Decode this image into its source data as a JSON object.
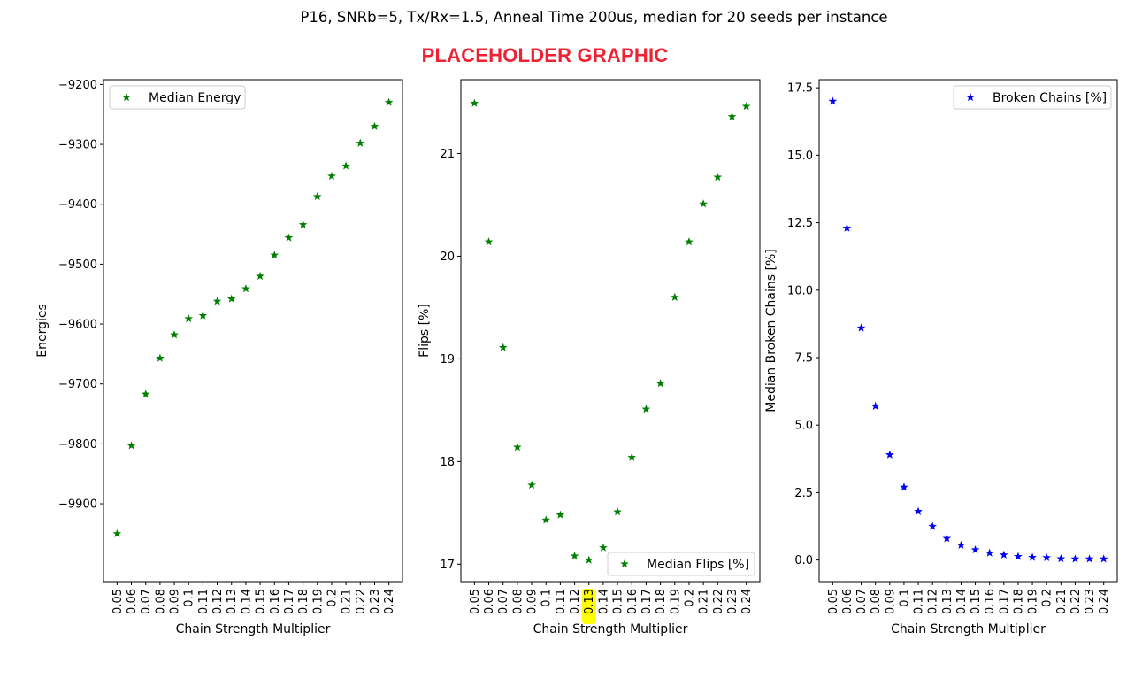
{
  "suptitle": "P16, SNRb=5, Tx/Rx=1.5, Anneal Time 200us, median for 20 seeds per instance",
  "placeholder": "PLACEHOLDER GRAPHIC",
  "highlight_color": "#ffff00",
  "chart_data": [
    {
      "type": "scatter",
      "title": "",
      "xlabel": "Chain Strength Multiplier",
      "ylabel": "Energies",
      "categories": [
        "0.05",
        "0.06",
        "0.07",
        "0.08",
        "0.09",
        "0.1",
        "0.11",
        "0.12",
        "0.13",
        "0.14",
        "0.15",
        "0.16",
        "0.17",
        "0.18",
        "0.19",
        "0.2",
        "0.21",
        "0.22",
        "0.23",
        "0.24"
      ],
      "yticks": [
        -9900,
        -9800,
        -9700,
        -9600,
        -9500,
        -9400,
        -9300,
        -9200
      ],
      "ylim": [
        -10030,
        -9192
      ],
      "legend_position": "upper left",
      "marker": "star",
      "series": [
        {
          "name": "Median Energy",
          "color": "#008000",
          "values": [
            -9950,
            -9803,
            -9717,
            -9657,
            -9618,
            -9591,
            -9586,
            -9562,
            -9558,
            -9541,
            -9520,
            -9485,
            -9456,
            -9434,
            -9387,
            -9353,
            -9336,
            -9298,
            -9270,
            -9230
          ]
        }
      ]
    },
    {
      "type": "scatter",
      "title": "",
      "xlabel": "Chain Strength Multiplier",
      "ylabel": "Flips [%]",
      "categories": [
        "0.05",
        "0.06",
        "0.07",
        "0.08",
        "0.09",
        "0.1",
        "0.11",
        "0.12",
        "0.13",
        "0.14",
        "0.15",
        "0.16",
        "0.17",
        "0.18",
        "0.19",
        "0.2",
        "0.21",
        "0.22",
        "0.23",
        "0.24"
      ],
      "highlighted_category": "0.13",
      "yticks": [
        17,
        18,
        19,
        20,
        21
      ],
      "ylim": [
        16.83,
        21.72
      ],
      "legend_position": "lower right",
      "marker": "star",
      "series": [
        {
          "name": "Median Flips [%]",
          "color": "#008000",
          "values": [
            21.49,
            20.14,
            19.11,
            18.14,
            17.77,
            17.43,
            17.48,
            17.08,
            17.04,
            17.16,
            17.51,
            18.04,
            18.51,
            18.76,
            19.6,
            20.14,
            20.51,
            20.77,
            21.36,
            21.46
          ]
        }
      ]
    },
    {
      "type": "scatter",
      "title": "",
      "xlabel": "Chain Strength Multiplier",
      "ylabel": "Median Broken Chains [%]",
      "categories": [
        "0.05",
        "0.06",
        "0.07",
        "0.08",
        "0.09",
        "0.1",
        "0.11",
        "0.12",
        "0.13",
        "0.14",
        "0.15",
        "0.16",
        "0.17",
        "0.18",
        "0.19",
        "0.2",
        "0.21",
        "0.22",
        "0.23",
        "0.24"
      ],
      "ytick_labels": [
        "0.0",
        "2.5",
        "5.0",
        "7.5",
        "10.0",
        "12.5",
        "15.0",
        "17.5"
      ],
      "yticks": [
        0,
        2.5,
        5,
        7.5,
        10,
        12.5,
        15,
        17.5
      ],
      "ylim": [
        -0.8,
        17.8
      ],
      "legend_position": "upper right",
      "marker": "star",
      "series": [
        {
          "name": "Broken Chains [%]",
          "color": "#0000ff",
          "values": [
            17.0,
            12.3,
            8.6,
            5.7,
            3.9,
            2.7,
            1.8,
            1.25,
            0.8,
            0.55,
            0.38,
            0.26,
            0.19,
            0.13,
            0.1,
            0.09,
            0.05,
            0.04,
            0.04,
            0.04
          ]
        }
      ]
    }
  ]
}
